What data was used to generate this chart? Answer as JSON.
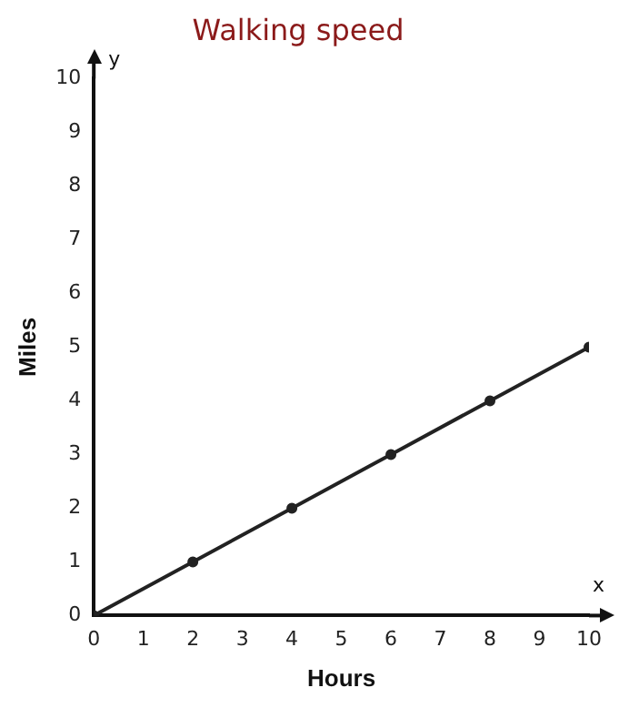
{
  "chart_data": {
    "type": "line",
    "title": "Walking speed",
    "xlabel": "Hours",
    "ylabel": "Miles",
    "x": [
      0,
      2,
      4,
      6,
      8,
      10
    ],
    "series": [
      {
        "color": "#222222",
        "values": [
          0,
          1,
          2,
          3,
          4,
          5
        ]
      }
    ],
    "xlim": [
      0,
      10
    ],
    "ylim": [
      0,
      10
    ],
    "xticks": [
      0,
      1,
      2,
      3,
      4,
      5,
      6,
      7,
      8,
      9,
      10
    ],
    "yticks": [
      0,
      1,
      2,
      3,
      4,
      5,
      6,
      7,
      8,
      9,
      10
    ],
    "annotations": [
      "y",
      "x"
    ],
    "grid": false,
    "legend": false,
    "marker": "circle",
    "line_style": "solid"
  }
}
